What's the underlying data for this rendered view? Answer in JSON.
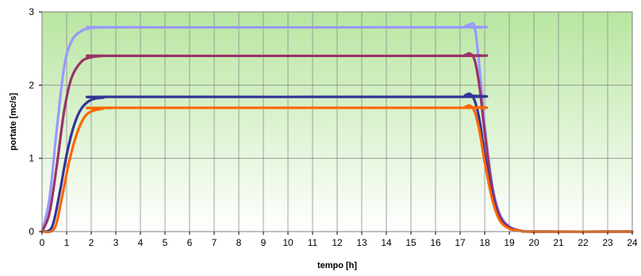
{
  "chart_data": {
    "type": "line",
    "xlabel": "tempo [h]",
    "ylabel": "portate [mc/s]",
    "xlim": [
      0,
      24
    ],
    "ylim": [
      0,
      3
    ],
    "xticks": [
      "0",
      "1",
      "2",
      "3",
      "4",
      "5",
      "6",
      "7",
      "8",
      "9",
      "10",
      "11",
      "12",
      "13",
      "14",
      "15",
      "16",
      "17",
      "18",
      "19",
      "20",
      "21",
      "22",
      "23",
      "24"
    ],
    "yticks": [
      "0",
      "1",
      "2",
      "3"
    ],
    "grid": true,
    "legend": "none",
    "colors": {
      "grid": "#8c8c8c",
      "plot_bg_top": "#b8e6a0",
      "plot_bg_bottom": "#ffffff",
      "frame": "#7f7f7f"
    },
    "series": [
      {
        "color": "#9999ff",
        "points": [
          [
            0,
            0
          ],
          [
            0.3,
            0.45
          ],
          [
            0.6,
            1.4
          ],
          [
            0.9,
            2.25
          ],
          [
            1.2,
            2.6
          ],
          [
            1.6,
            2.74
          ],
          [
            2,
            2.78
          ],
          [
            2.5,
            2.79
          ],
          [
            3,
            2.79
          ],
          [
            17,
            2.79
          ],
          [
            17.2,
            2.8
          ],
          [
            17.4,
            2.83
          ],
          [
            17.6,
            2.78
          ],
          [
            17.8,
            2.2
          ],
          [
            18,
            1.45
          ],
          [
            18.3,
            0.65
          ],
          [
            18.6,
            0.25
          ],
          [
            19,
            0.07
          ],
          [
            19.5,
            0.01
          ],
          [
            20,
            0
          ],
          [
            24,
            0
          ]
        ]
      },
      {
        "color": "#993366",
        "points": [
          [
            0,
            0
          ],
          [
            0.3,
            0.25
          ],
          [
            0.6,
            0.9
          ],
          [
            0.9,
            1.65
          ],
          [
            1.2,
            2.1
          ],
          [
            1.6,
            2.32
          ],
          [
            2,
            2.38
          ],
          [
            2.5,
            2.4
          ],
          [
            3,
            2.4
          ],
          [
            17,
            2.4
          ],
          [
            17.2,
            2.41
          ],
          [
            17.4,
            2.43
          ],
          [
            17.6,
            2.33
          ],
          [
            17.8,
            1.95
          ],
          [
            18,
            1.35
          ],
          [
            18.3,
            0.6
          ],
          [
            18.6,
            0.22
          ],
          [
            19,
            0.06
          ],
          [
            19.5,
            0.01
          ],
          [
            20,
            0
          ],
          [
            24,
            0
          ]
        ]
      },
      {
        "color": "#333399",
        "points": [
          [
            0,
            0
          ],
          [
            0.4,
            0.06
          ],
          [
            0.7,
            0.5
          ],
          [
            1,
            1.05
          ],
          [
            1.3,
            1.45
          ],
          [
            1.6,
            1.68
          ],
          [
            2,
            1.8
          ],
          [
            2.5,
            1.83
          ],
          [
            3,
            1.84
          ],
          [
            17,
            1.84
          ],
          [
            17.2,
            1.86
          ],
          [
            17.4,
            1.88
          ],
          [
            17.6,
            1.78
          ],
          [
            17.8,
            1.5
          ],
          [
            18,
            1.05
          ],
          [
            18.3,
            0.5
          ],
          [
            18.6,
            0.18
          ],
          [
            19,
            0.05
          ],
          [
            19.5,
            0.01
          ],
          [
            20,
            0
          ],
          [
            24,
            0
          ]
        ]
      },
      {
        "color": "#ff6600",
        "points": [
          [
            0,
            0
          ],
          [
            0.5,
            0.04
          ],
          [
            0.8,
            0.45
          ],
          [
            1.1,
            0.95
          ],
          [
            1.4,
            1.32
          ],
          [
            1.7,
            1.55
          ],
          [
            2,
            1.64
          ],
          [
            2.5,
            1.68
          ],
          [
            3,
            1.69
          ],
          [
            17,
            1.69
          ],
          [
            17.2,
            1.7
          ],
          [
            17.4,
            1.72
          ],
          [
            17.6,
            1.63
          ],
          [
            17.8,
            1.35
          ],
          [
            18,
            0.95
          ],
          [
            18.3,
            0.45
          ],
          [
            18.6,
            0.16
          ],
          [
            19,
            0.04
          ],
          [
            19.5,
            0.01
          ],
          [
            20,
            0
          ],
          [
            24,
            0
          ]
        ]
      }
    ]
  }
}
